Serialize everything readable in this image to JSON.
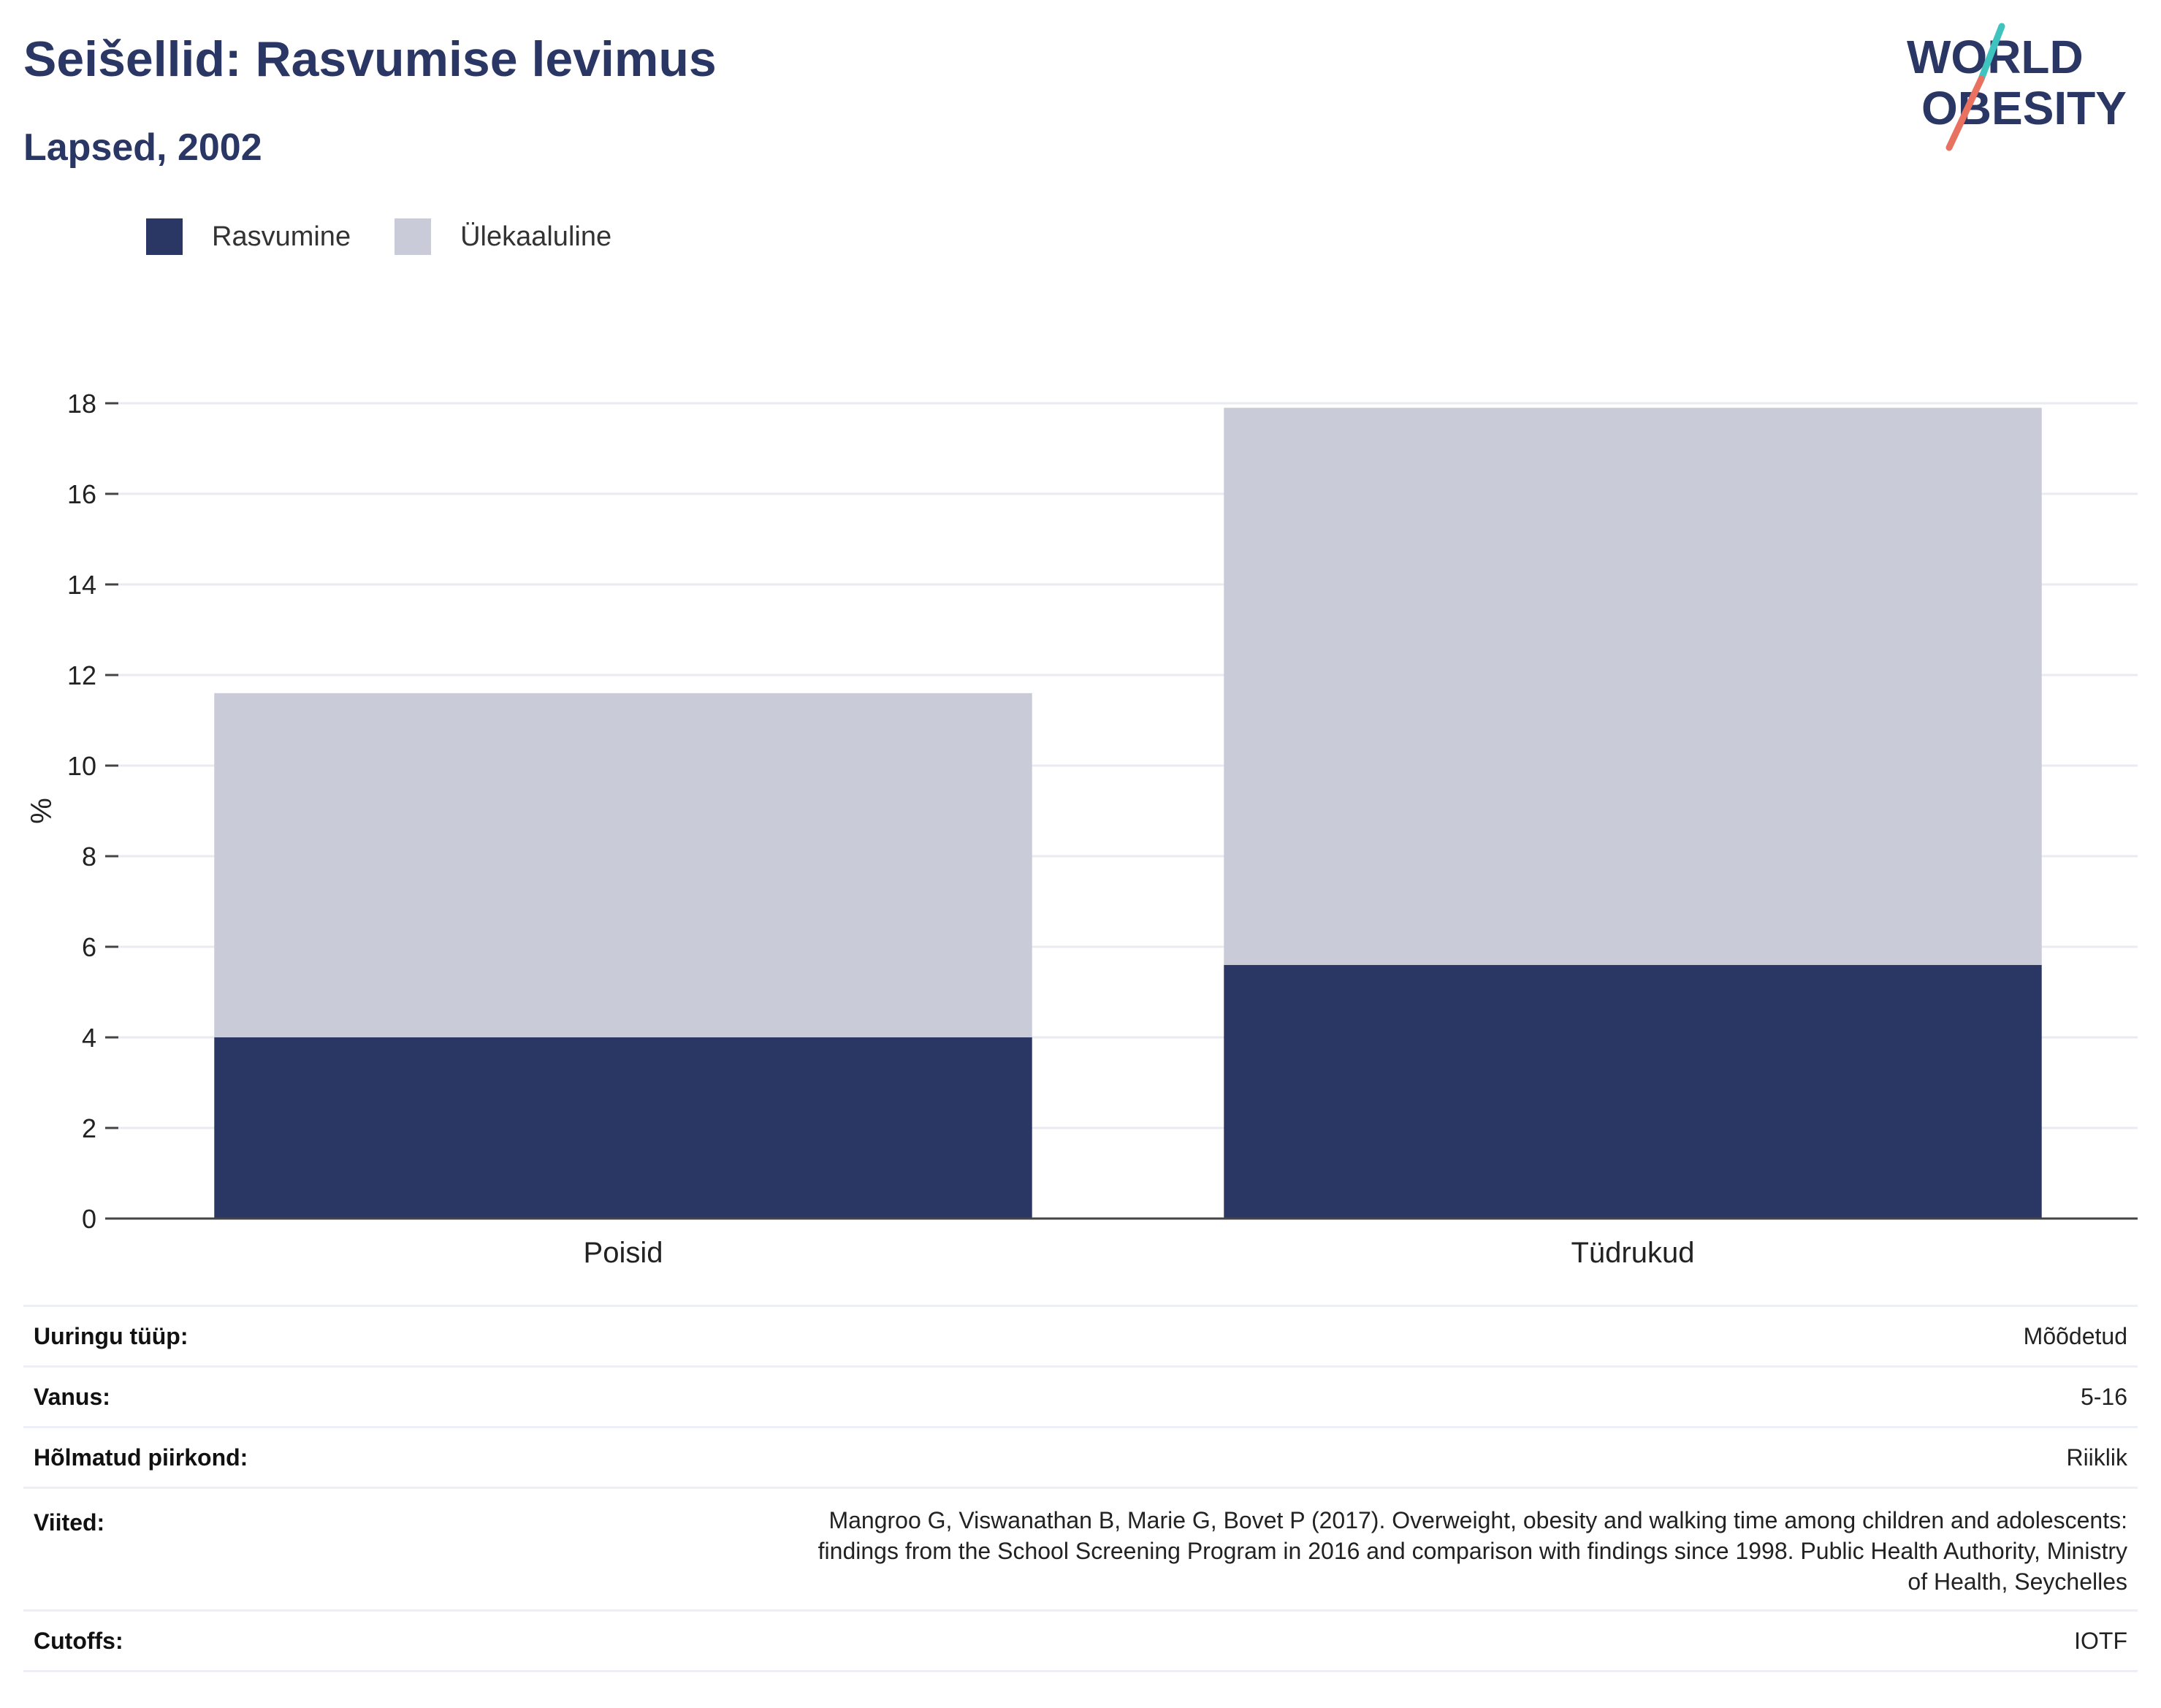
{
  "header": {
    "title": "Seišellid: Rasvumise levimus",
    "subtitle": "Lapsed, 2002"
  },
  "logo": {
    "line1": "WORLD",
    "line2": "OBESITY",
    "colors": {
      "text": "#2a3663",
      "accent_teal": "#3ec3bf",
      "accent_red": "#e8715f"
    }
  },
  "legend": {
    "items": [
      {
        "label": "Rasvumine",
        "color": "#2a3663"
      },
      {
        "label": "Ülekaaluline",
        "color": "#c9ccd8"
      }
    ]
  },
  "chart_data": {
    "type": "bar",
    "stacked": true,
    "categories": [
      "Poisid",
      "Tüdrukud"
    ],
    "series": [
      {
        "name": "Rasvumine",
        "values": [
          4.0,
          5.6
        ],
        "color": "#2a3663"
      },
      {
        "name": "Ülekaaluline",
        "values": [
          7.6,
          12.3
        ],
        "color": "#c9ccd8"
      }
    ],
    "ylabel": "%",
    "ylim": [
      0,
      18
    ],
    "yticks": [
      0,
      2,
      4,
      6,
      8,
      10,
      12,
      14,
      16,
      18
    ],
    "grid": true,
    "legend_position": "top-left"
  },
  "meta": {
    "rows": [
      {
        "key": "Uuringu tüüp:",
        "value": "Mõõdetud"
      },
      {
        "key": "Vanus:",
        "value": "5-16"
      },
      {
        "key": "Hõlmatud piirkond:",
        "value": "Riiklik"
      },
      {
        "key": "Viited:",
        "value": "Mangroo G, Viswanathan B, Marie G, Bovet P (2017). Overweight, obesity and walking time among children and adolescents: findings from the School Screening Program in 2016 and comparison with findings since 1998. Public Health Authority, Ministry of Health, Seychelles"
      },
      {
        "key": "Cutoffs:",
        "value": "IOTF"
      }
    ]
  }
}
